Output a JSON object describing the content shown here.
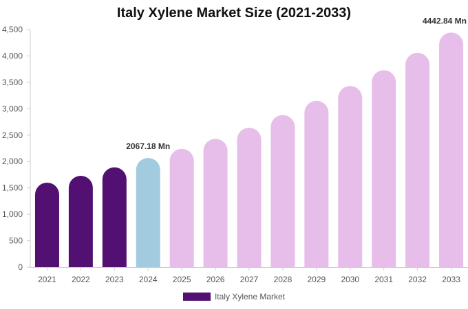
{
  "chart_data": {
    "type": "bar",
    "title": "Italy Xylene Market Size (2021-2033)",
    "categories": [
      "2021",
      "2022",
      "2023",
      "2024",
      "2025",
      "2026",
      "2027",
      "2028",
      "2029",
      "2030",
      "2031",
      "2032",
      "2033"
    ],
    "series": [
      {
        "name": "Italy Xylene Market",
        "values": [
          1600,
          1730,
          1890,
          2067.18,
          2240,
          2430,
          2640,
          2880,
          3150,
          3430,
          3730,
          4060,
          4442.84
        ]
      }
    ],
    "ylim": [
      0,
      4500
    ],
    "yticks": [
      0,
      500,
      1000,
      1500,
      2000,
      2500,
      3000,
      3500,
      4000,
      4500
    ],
    "ytick_labels": [
      "0",
      "500",
      "1,000",
      "1,500",
      "2,000",
      "2,500",
      "3,000",
      "3,500",
      "4,000",
      "4,500"
    ],
    "annotations": [
      {
        "category": "2024",
        "text": "2067.18 Mn"
      },
      {
        "category": "2033",
        "text": "4442.84 Mn"
      }
    ],
    "bar_colors": {
      "historical": "#521073",
      "base_year": "#a3cbe0",
      "forecast": "#e7bde9"
    },
    "grid": false,
    "legend_position": "bottom"
  }
}
